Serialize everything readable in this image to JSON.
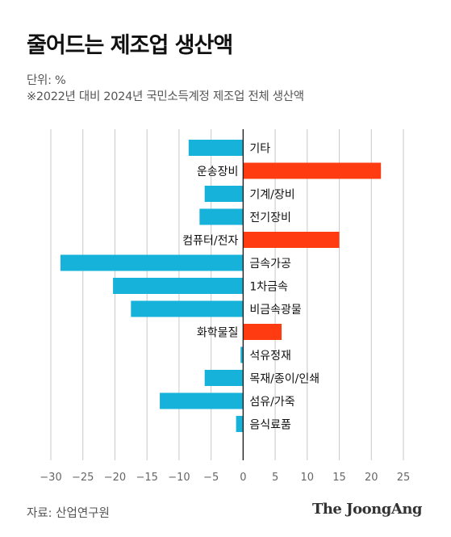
{
  "title": "줄어드는 제조업 생산액",
  "unit_label": "단위: %",
  "subtitle": "※2022년 대비 2024년 국민소득계정 제조업 전체 생산액",
  "source": "자료: 산업연구원",
  "brand": "The JoongAng",
  "colors": {
    "negative": "#16b2da",
    "positive": "#ff3b12",
    "grid": "#c9c9c9",
    "axis": "#222222"
  },
  "chart_data": {
    "type": "bar",
    "orientation": "horizontal",
    "categories": [
      "기타",
      "운송장비",
      "기계/장비",
      "전기장비",
      "컴퓨터/전자",
      "금속가공",
      "1차금속",
      "비금속광물",
      "화학물질",
      "석유정재",
      "목재/종이/인쇄",
      "섬유/가죽",
      "음식료품"
    ],
    "values": [
      -8.5,
      21.5,
      -6,
      -6.8,
      15,
      -28.5,
      -20.3,
      -17.5,
      6,
      -0.4,
      -6,
      -13,
      -1.1
    ],
    "xlim": [
      -30,
      25
    ],
    "xticks": [
      -30,
      -25,
      -20,
      -15,
      -10,
      -5,
      0,
      5,
      10,
      15,
      20,
      25
    ],
    "grid": true,
    "legend": "none"
  }
}
